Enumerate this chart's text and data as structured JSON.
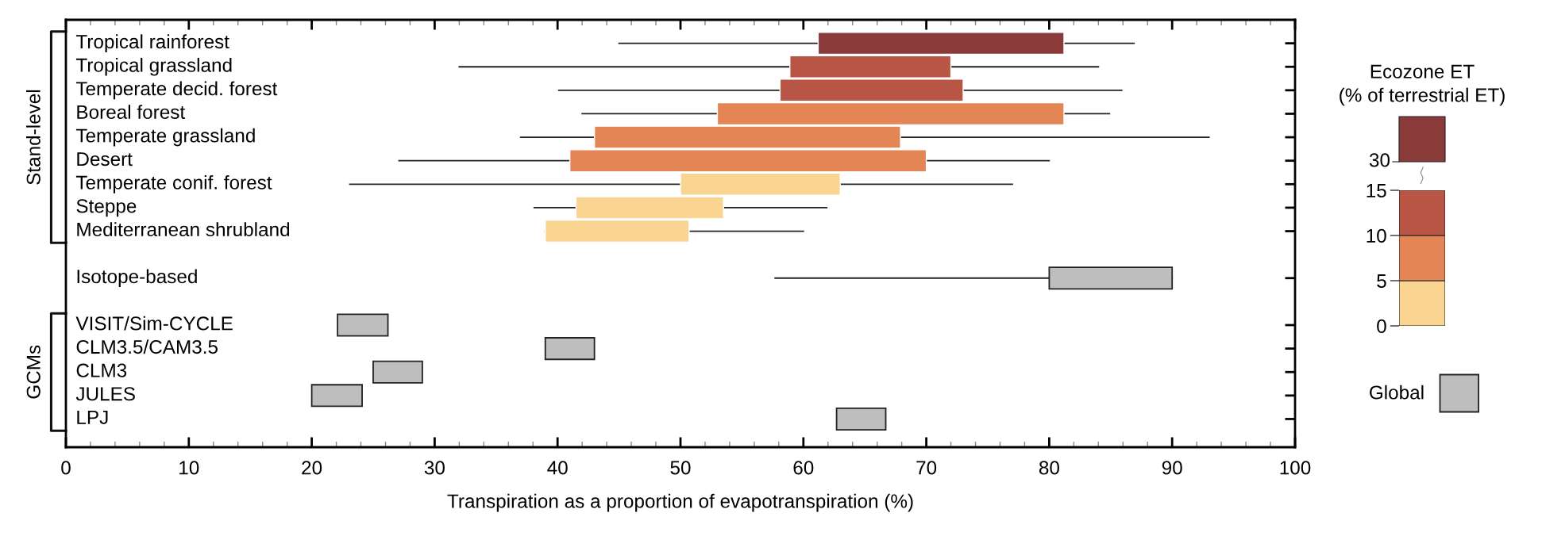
{
  "chart_data": [
    {
      "type": "bar",
      "orientation": "horizontal",
      "xlabel": "Transpiration as a proportion of evapotranspiration (%)",
      "categories": [
        "Tropical rainforest",
        "Tropical grassland",
        "Temperate decid. forest",
        "Boreal forest",
        "Temperate grassland",
        "Desert",
        "Temperate conif. forest",
        "Steppe",
        "Mediterranean shrubland",
        null,
        "Isotope-based",
        null,
        "VISIT/Sim-CYCLE",
        "CLM3.5/CAM3.5",
        "CLM3",
        "JULES",
        "LPJ"
      ],
      "xlim": [
        0,
        100
      ],
      "xticks": [
        0,
        10,
        20,
        30,
        40,
        50,
        60,
        70,
        80,
        90,
        100
      ],
      "annotations": [
        "Stand-level",
        "GCMs"
      ],
      "legend": "right",
      "series": [
        {
          "color": "#fad592",
          "base": [
            null,
            null,
            null,
            null,
            null,
            null,
            50.0,
            41.5,
            39.0,
            null,
            null,
            null,
            null,
            null,
            null,
            null,
            null
          ],
          "values": [
            null,
            null,
            null,
            null,
            null,
            null,
            13.0,
            12.0,
            11.7,
            null,
            null,
            null,
            null,
            null,
            null,
            null,
            null
          ],
          "errors": [
            null,
            null,
            null,
            null,
            null,
            null,
            [
              23.1,
              77.0
            ],
            [
              38.1,
              61.9
            ],
            [
              39.0,
              60.0
            ],
            null,
            null,
            null,
            null,
            null,
            null,
            null,
            null
          ]
        },
        {
          "color": "#e38555",
          "base": [
            null,
            null,
            null,
            53.0,
            43.0,
            41.0,
            null,
            null,
            null,
            null,
            null,
            null,
            null,
            null,
            null,
            null,
            null
          ],
          "values": [
            null,
            null,
            null,
            28.2,
            24.9,
            29.0,
            null,
            null,
            null,
            null,
            null,
            null,
            null,
            null,
            null,
            null,
            null
          ],
          "errors": [
            null,
            null,
            null,
            [
              42.0,
              84.9
            ],
            [
              37.0,
              93.0
            ],
            [
              27.1,
              80.0
            ],
            null,
            null,
            null,
            null,
            null,
            null,
            null,
            null,
            null,
            null,
            null
          ]
        },
        {
          "color": "#b85545",
          "base": [
            null,
            58.9,
            58.1,
            null,
            null,
            null,
            null,
            null,
            null,
            null,
            null,
            null,
            null,
            null,
            null,
            null,
            null
          ],
          "values": [
            null,
            13.1,
            14.9,
            null,
            null,
            null,
            null,
            null,
            null,
            null,
            null,
            null,
            null,
            null,
            null,
            null,
            null
          ],
          "errors": [
            null,
            [
              32.0,
              84.0
            ],
            [
              40.1,
              85.9
            ],
            null,
            null,
            null,
            null,
            null,
            null,
            null,
            null,
            null,
            null,
            null,
            null,
            null,
            null
          ]
        },
        {
          "color": "#8b3a3a",
          "base": [
            61.2,
            null,
            null,
            null,
            null,
            null,
            null,
            null,
            null,
            null,
            null,
            null,
            null,
            null,
            null,
            null,
            null
          ],
          "values": [
            20.0,
            null,
            null,
            null,
            null,
            null,
            null,
            null,
            null,
            null,
            null,
            null,
            null,
            null,
            null,
            null,
            null
          ],
          "errors": [
            [
              45.0,
              86.9
            ],
            null,
            null,
            null,
            null,
            null,
            null,
            null,
            null,
            null,
            null,
            null,
            null,
            null,
            null,
            null,
            null
          ]
        },
        {
          "name": "Global",
          "color": "#bebebe",
          "base": [
            null,
            null,
            null,
            null,
            null,
            null,
            null,
            null,
            null,
            null,
            80.0,
            null,
            22.1,
            39.0,
            25.0,
            20.0,
            62.7
          ],
          "values": [
            null,
            null,
            null,
            null,
            null,
            null,
            null,
            null,
            null,
            null,
            10.0,
            null,
            4.1,
            4.0,
            4.0,
            4.1,
            4.0
          ],
          "errors": [
            null,
            null,
            null,
            null,
            null,
            null,
            null,
            null,
            null,
            null,
            [
              57.7,
              90.0
            ],
            null,
            null,
            null,
            null,
            null,
            null
          ]
        }
      ]
    },
    {
      "type": "bar",
      "stacked": true,
      "title": "Ecozone ET\n(% of terrestrial ET)",
      "annotations": [
        "30"
      ],
      "categories": [
        null
      ],
      "ylim": [
        0,
        15
      ],
      "yticks": [
        0,
        5,
        10,
        15
      ],
      "series": [
        {
          "color": "#fad592",
          "values": [
            5
          ]
        },
        {
          "color": "#e38555",
          "values": [
            5
          ]
        },
        {
          "color": "#b85545",
          "values": [
            5
          ]
        }
      ]
    }
  ]
}
